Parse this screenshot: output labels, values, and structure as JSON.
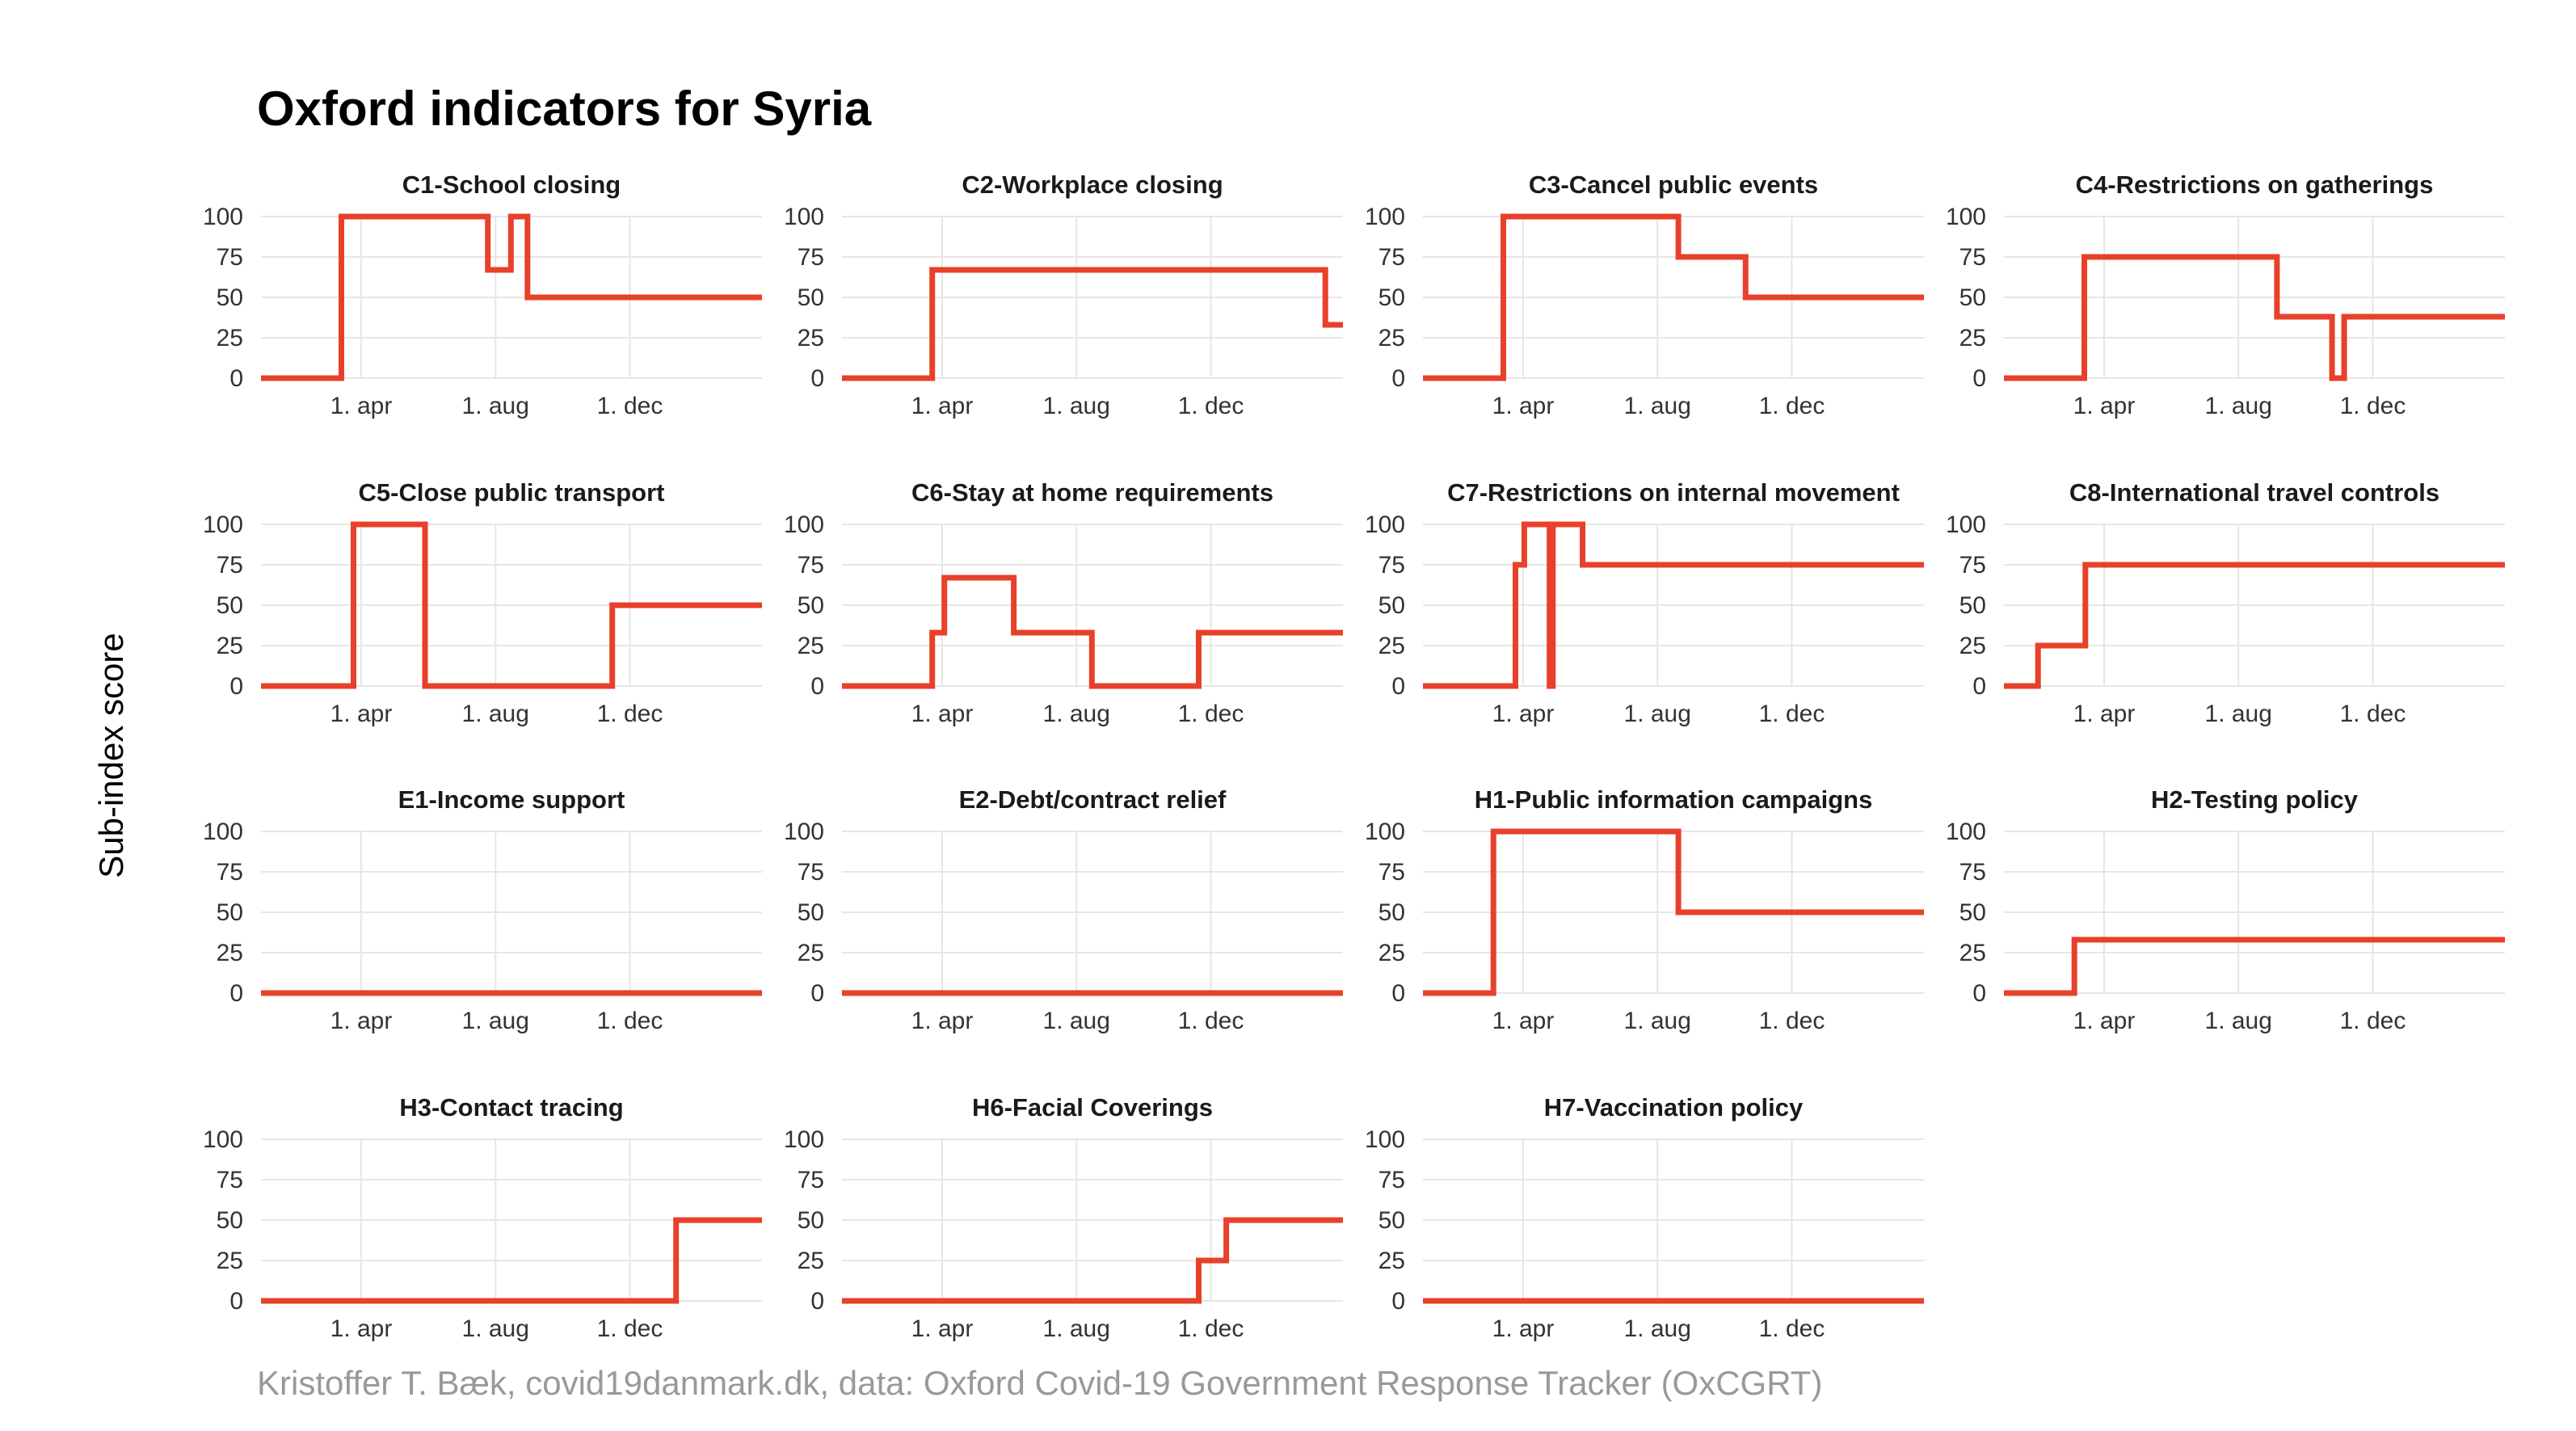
{
  "title": "Oxford indicators for Syria",
  "ylabel": "Sub-index score",
  "caption": "Kristoffer T. Bæk, covid19danmark.dk, data: Oxford Covid-19 Government Response Tracker (OxCGRT)",
  "colors": {
    "line": "#e8402a",
    "grid": "#e6e6e6",
    "text": "#333333",
    "caption": "#999999"
  },
  "chart_data": {
    "type": "line",
    "layout": "small-multiples-4-columns",
    "step": true,
    "grid": true,
    "ylim": [
      0,
      100
    ],
    "yticks": [
      0,
      25,
      50,
      75,
      100
    ],
    "x_range": [
      "2020-01-01",
      "2021-03-31"
    ],
    "xticks": [
      {
        "date": "2020-04-01",
        "label": "1. apr"
      },
      {
        "date": "2020-08-01",
        "label": "1. aug"
      },
      {
        "date": "2020-12-01",
        "label": "1. dec"
      }
    ],
    "panels": [
      {
        "title": "C1-School closing",
        "points": [
          [
            "2020-01-01",
            0
          ],
          [
            "2020-03-14",
            100
          ],
          [
            "2020-07-25",
            67
          ],
          [
            "2020-08-15",
            100
          ],
          [
            "2020-08-30",
            50
          ],
          [
            "2021-03-31",
            50
          ]
        ]
      },
      {
        "title": "C2-Workplace closing",
        "points": [
          [
            "2020-01-01",
            0
          ],
          [
            "2020-03-23",
            67
          ],
          [
            "2021-03-15",
            33
          ],
          [
            "2021-03-31",
            33
          ]
        ]
      },
      {
        "title": "C3-Cancel public events",
        "points": [
          [
            "2020-01-01",
            0
          ],
          [
            "2020-03-14",
            100
          ],
          [
            "2020-08-20",
            75
          ],
          [
            "2020-10-20",
            50
          ],
          [
            "2021-03-31",
            50
          ]
        ]
      },
      {
        "title": "C4-Restrictions on gatherings",
        "points": [
          [
            "2020-01-01",
            0
          ],
          [
            "2020-03-14",
            75
          ],
          [
            "2020-09-05",
            38
          ],
          [
            "2020-10-25",
            0
          ],
          [
            "2020-11-05",
            38
          ],
          [
            "2021-03-31",
            38
          ]
        ]
      },
      {
        "title": "C5-Close public transport",
        "points": [
          [
            "2020-01-01",
            0
          ],
          [
            "2020-03-25",
            100
          ],
          [
            "2020-05-29",
            0
          ],
          [
            "2020-11-15",
            50
          ],
          [
            "2021-03-31",
            50
          ]
        ]
      },
      {
        "title": "C6-Stay at home requirements",
        "points": [
          [
            "2020-01-01",
            0
          ],
          [
            "2020-03-23",
            33
          ],
          [
            "2020-04-03",
            67
          ],
          [
            "2020-06-05",
            33
          ],
          [
            "2020-08-15",
            0
          ],
          [
            "2020-11-20",
            33
          ],
          [
            "2021-03-31",
            33
          ]
        ]
      },
      {
        "title": "C7-Restrictions on internal movement",
        "points": [
          [
            "2020-01-01",
            0
          ],
          [
            "2020-03-25",
            75
          ],
          [
            "2020-04-02",
            100
          ],
          [
            "2020-04-25",
            0
          ],
          [
            "2020-04-28",
            100
          ],
          [
            "2020-05-25",
            75
          ],
          [
            "2021-03-31",
            75
          ]
        ]
      },
      {
        "title": "C8-International travel controls",
        "points": [
          [
            "2020-01-01",
            0
          ],
          [
            "2020-02-01",
            25
          ],
          [
            "2020-03-15",
            75
          ],
          [
            "2021-03-31",
            75
          ]
        ]
      },
      {
        "title": "E1-Income support",
        "points": [
          [
            "2020-01-01",
            0
          ],
          [
            "2021-03-31",
            0
          ]
        ]
      },
      {
        "title": "E2-Debt/contract relief",
        "points": [
          [
            "2020-01-01",
            0
          ],
          [
            "2021-03-31",
            0
          ]
        ]
      },
      {
        "title": "H1-Public information campaigns",
        "points": [
          [
            "2020-01-01",
            0
          ],
          [
            "2020-03-05",
            100
          ],
          [
            "2020-08-20",
            50
          ],
          [
            "2021-03-31",
            50
          ]
        ]
      },
      {
        "title": "H2-Testing policy",
        "points": [
          [
            "2020-01-01",
            0
          ],
          [
            "2020-03-05",
            33
          ],
          [
            "2021-03-31",
            33
          ]
        ]
      },
      {
        "title": "H3-Contact tracing",
        "points": [
          [
            "2020-01-01",
            0
          ],
          [
            "2021-01-12",
            50
          ],
          [
            "2021-03-31",
            50
          ]
        ]
      },
      {
        "title": "H6-Facial Coverings",
        "points": [
          [
            "2020-01-01",
            0
          ],
          [
            "2020-11-20",
            25
          ],
          [
            "2020-12-15",
            50
          ],
          [
            "2021-03-31",
            50
          ]
        ]
      },
      {
        "title": "H7-Vaccination policy",
        "points": [
          [
            "2020-01-01",
            0
          ],
          [
            "2021-03-31",
            0
          ]
        ]
      }
    ]
  }
}
